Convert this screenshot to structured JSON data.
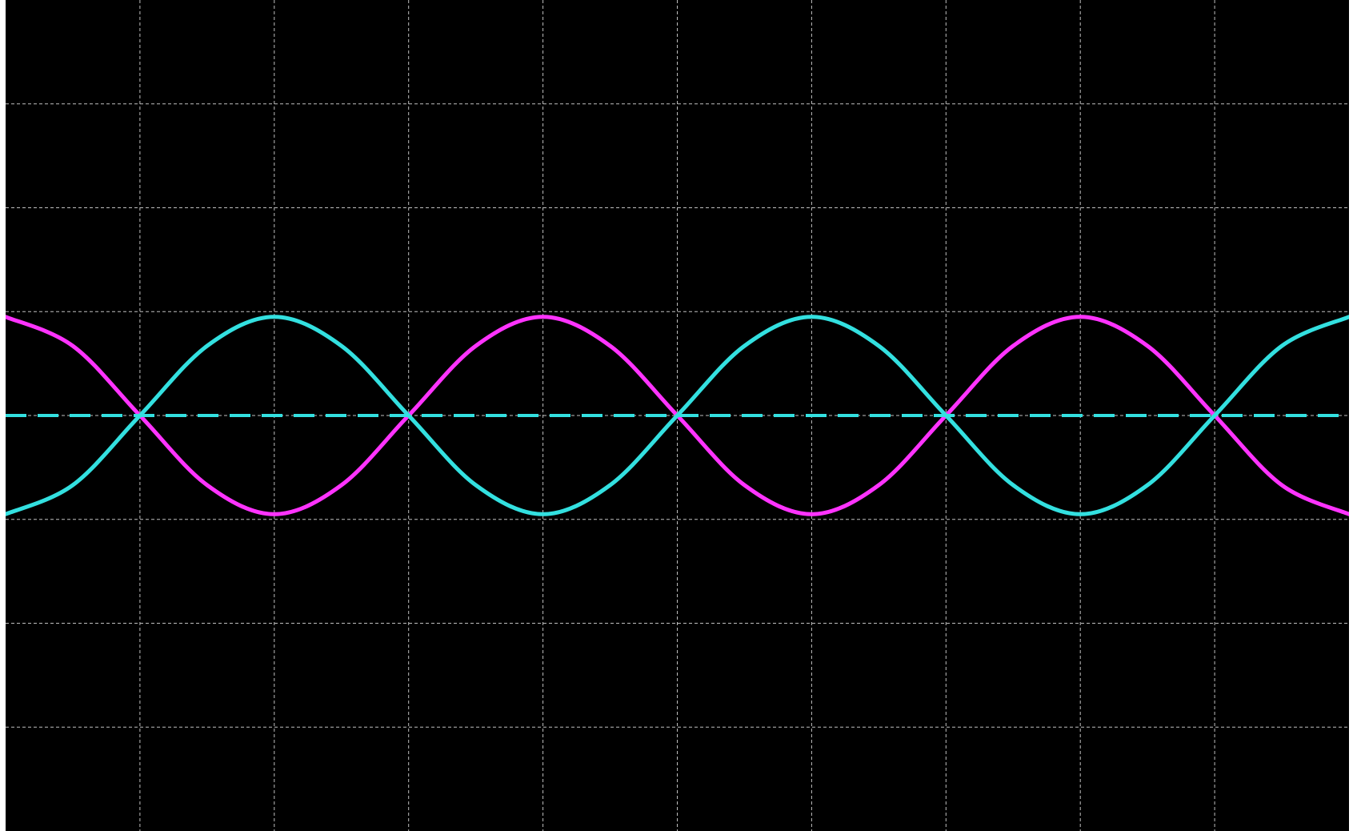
{
  "chart_data": {
    "type": "line",
    "title": "",
    "xlabel": "",
    "ylabel": "",
    "grid": true,
    "grid_divisions": {
      "x": 10,
      "y": 8
    },
    "xlim": [
      0,
      10
    ],
    "ylim": [
      -4,
      4
    ],
    "background_color": "#000000",
    "grid_color": "#bfbfbf",
    "series": [
      {
        "color": "#ff33ff",
        "style": "solid",
        "x": [
          0,
          0.5,
          1,
          1.5,
          2,
          2.5,
          3,
          3.5,
          4,
          4.5,
          5,
          5.5,
          6,
          6.5,
          7,
          7.5,
          8,
          8.5,
          9,
          9.5,
          10
        ],
        "y": [
          0.95,
          0.67,
          0,
          -0.67,
          -0.95,
          -0.67,
          0,
          0.67,
          0.95,
          0.67,
          0,
          -0.67,
          -0.95,
          -0.67,
          0,
          0.67,
          0.95,
          0.67,
          0,
          -0.67,
          -0.95
        ]
      },
      {
        "color": "#33e0e0",
        "style": "solid",
        "x": [
          0,
          0.5,
          1,
          1.5,
          2,
          2.5,
          3,
          3.5,
          4,
          4.5,
          5,
          5.5,
          6,
          6.5,
          7,
          7.5,
          8,
          8.5,
          9,
          9.5,
          10
        ],
        "y": [
          -0.95,
          -0.67,
          0,
          0.67,
          0.95,
          0.67,
          0,
          -0.67,
          -0.95,
          -0.67,
          0,
          0.67,
          0.95,
          0.67,
          0,
          -0.67,
          -0.95,
          -0.67,
          0,
          0.67,
          0.95
        ]
      },
      {
        "color": "#33e0e0",
        "style": "dashed",
        "x": [
          0,
          10
        ],
        "y": [
          0,
          0
        ]
      }
    ]
  }
}
